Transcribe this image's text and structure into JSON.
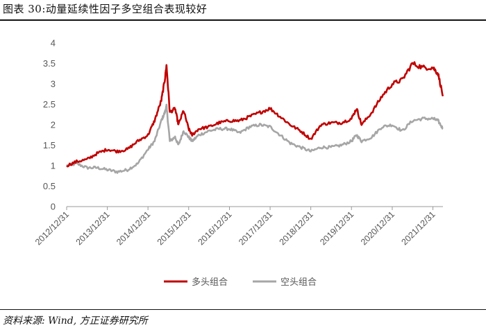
{
  "header": {
    "title": "图表 30:动量延续性因子多空组合表现较好"
  },
  "footer": {
    "source": "资料来源: Wind, 方正证券研究所"
  },
  "colors": {
    "long_series": "#c00000",
    "short_series": "#a6a6a6",
    "axis": "#999999",
    "rule": "#111111"
  },
  "chart_data": {
    "type": "line",
    "title": "",
    "xlabel": "",
    "ylabel": "",
    "ylim": [
      0,
      4
    ],
    "yticks": [
      "0",
      "0.5",
      "1",
      "1.5",
      "2",
      "2.5",
      "3",
      "3.5",
      "4"
    ],
    "xticks": [
      "2012/12/31",
      "2013/12/31",
      "2014/12/31",
      "2015/12/31",
      "2016/12/31",
      "2017/12/31",
      "2018/12/31",
      "2019/12/31",
      "2020/12/31",
      "2021/12/31"
    ],
    "xlim": [
      "2012/12/31",
      "2022/03/31"
    ],
    "grid": false,
    "legend_position": "bottom-center",
    "series": [
      {
        "name": "多头组合",
        "color": "#c00000",
        "x": [
          "2012/12/31",
          "2013/03/31",
          "2013/06/30",
          "2013/09/30",
          "2013/12/31",
          "2014/03/31",
          "2014/06/30",
          "2014/09/30",
          "2014/12/31",
          "2015/02/28",
          "2015/04/30",
          "2015/05/31",
          "2015/06/15",
          "2015/07/15",
          "2015/08/31",
          "2015/09/30",
          "2015/11/15",
          "2015/12/31",
          "2016/01/31",
          "2016/03/31",
          "2016/06/30",
          "2016/09/30",
          "2016/12/31",
          "2017/03/31",
          "2017/06/30",
          "2017/09/30",
          "2017/12/31",
          "2018/03/31",
          "2018/06/30",
          "2018/09/30",
          "2018/12/31",
          "2019/03/31",
          "2019/06/30",
          "2019/09/30",
          "2019/12/31",
          "2020/02/15",
          "2020/03/31",
          "2020/06/30",
          "2020/09/30",
          "2020/12/31",
          "2021/03/31",
          "2021/06/30",
          "2021/09/30",
          "2021/12/31",
          "2022/02/15",
          "2022/03/31"
        ],
        "values": [
          1.0,
          1.1,
          1.15,
          1.3,
          1.4,
          1.35,
          1.4,
          1.6,
          1.75,
          2.1,
          2.6,
          3.1,
          3.45,
          2.3,
          2.4,
          2.0,
          2.35,
          1.9,
          1.75,
          1.9,
          1.95,
          2.05,
          2.1,
          2.1,
          2.2,
          2.3,
          2.4,
          2.2,
          2.0,
          1.85,
          1.65,
          2.0,
          2.05,
          2.05,
          2.15,
          2.4,
          2.0,
          2.3,
          2.7,
          3.0,
          3.1,
          3.5,
          3.4,
          3.4,
          3.25,
          2.7
        ]
      },
      {
        "name": "空头组合",
        "color": "#a6a6a6",
        "x": [
          "2012/12/31",
          "2013/03/31",
          "2013/06/30",
          "2013/09/30",
          "2013/12/31",
          "2014/03/31",
          "2014/06/30",
          "2014/09/30",
          "2014/12/31",
          "2015/02/28",
          "2015/04/30",
          "2015/05/31",
          "2015/06/15",
          "2015/07/15",
          "2015/08/31",
          "2015/09/30",
          "2015/11/15",
          "2015/12/31",
          "2016/01/31",
          "2016/03/31",
          "2016/06/30",
          "2016/09/30",
          "2016/12/31",
          "2017/03/31",
          "2017/06/30",
          "2017/09/30",
          "2017/12/31",
          "2018/03/31",
          "2018/06/30",
          "2018/09/30",
          "2018/12/31",
          "2019/03/31",
          "2019/06/30",
          "2019/09/30",
          "2019/12/31",
          "2020/02/15",
          "2020/03/31",
          "2020/06/30",
          "2020/09/30",
          "2020/12/31",
          "2021/03/31",
          "2021/06/30",
          "2021/09/30",
          "2021/12/31",
          "2022/02/15",
          "2022/03/31"
        ],
        "values": [
          1.0,
          1.05,
          0.95,
          0.95,
          0.9,
          0.85,
          0.9,
          1.05,
          1.4,
          1.6,
          2.1,
          2.3,
          2.45,
          1.6,
          1.7,
          1.5,
          1.85,
          1.7,
          1.6,
          1.75,
          1.85,
          1.9,
          1.9,
          1.8,
          1.95,
          2.0,
          1.95,
          1.75,
          1.55,
          1.45,
          1.35,
          1.45,
          1.45,
          1.5,
          1.6,
          1.75,
          1.6,
          1.7,
          1.95,
          2.0,
          1.85,
          2.1,
          2.15,
          2.15,
          2.1,
          1.9
        ]
      }
    ]
  }
}
